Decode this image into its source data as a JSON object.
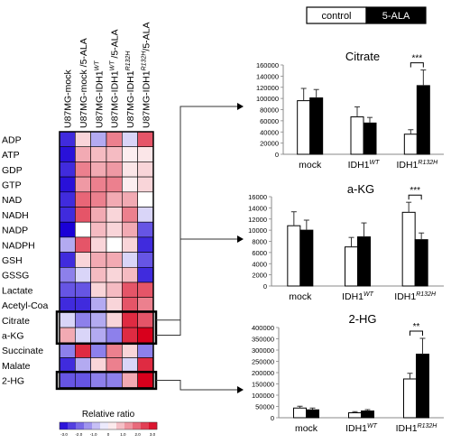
{
  "chart_data": [
    {
      "type": "heatmap",
      "columns": [
        "U87MG-mock",
        "U87MG-mock /5-ALA",
        "U87MG-IDH1 WT",
        "U87MG-IDH1 WT /5-ALA",
        "U87MG-IDH1 R132H",
        "U87MG-IDH1 R132H /5-ALA"
      ],
      "column_parts": [
        [
          "U87MG-mock",
          "",
          ""
        ],
        [
          "U87MG-mock /5-ALA",
          "",
          ""
        ],
        [
          "U87MG-IDH1",
          "WT",
          ""
        ],
        [
          "U87MG-IDH1",
          "WT",
          " /5-ALA"
        ],
        [
          "U87MG-IDH1",
          "R132H",
          ""
        ],
        [
          "U87MG-IDH1",
          "R132H",
          "/5-ALA"
        ]
      ],
      "rows": [
        "ADP",
        "ATP",
        "GDP",
        "GTP",
        "NAD",
        "NADH",
        "NADP",
        "NADPH",
        "GSH",
        "GSSG",
        "Lactate",
        "Acetyl-Coa",
        "Citrate",
        "a-KG",
        "Succinate",
        "Malate",
        "2-HG"
      ],
      "values": [
        [
          -2.5,
          0.5,
          -1.0,
          1.5,
          -0.5,
          2.0
        ],
        [
          -2.8,
          1.0,
          0.8,
          0.8,
          0.2,
          0.3
        ],
        [
          -2.5,
          1.5,
          1.0,
          1.2,
          0.3,
          0.5
        ],
        [
          -2.8,
          1.2,
          1.5,
          1.5,
          0.2,
          0.5
        ],
        [
          -2.5,
          1.8,
          1.5,
          1.0,
          1.0,
          0.0
        ],
        [
          -2.5,
          2.0,
          1.0,
          0.5,
          1.5,
          -0.5
        ],
        [
          -3.0,
          0.0,
          0.8,
          0.5,
          1.0,
          -2.0
        ],
        [
          -1.0,
          2.0,
          0.5,
          0.0,
          0.5,
          -2.5
        ],
        [
          -2.5,
          0.5,
          1.0,
          1.0,
          -0.5,
          -2.0
        ],
        [
          -1.5,
          -0.5,
          0.8,
          0.5,
          0.8,
          -2.5
        ],
        [
          -2.0,
          -2.0,
          0.5,
          0.8,
          2.0,
          2.0
        ],
        [
          -2.5,
          -2.5,
          -1.0,
          0.5,
          2.0,
          1.5
        ],
        [
          -0.5,
          -1.5,
          -1.0,
          0.5,
          2.5,
          2.0
        ],
        [
          1.0,
          -0.5,
          -1.0,
          -1.5,
          2.5,
          3.0
        ],
        [
          -1.5,
          2.5,
          -1.5,
          1.5,
          0.5,
          -1.5
        ],
        [
          -2.5,
          -1.0,
          0.5,
          1.5,
          -0.5,
          2.5
        ],
        [
          -2.0,
          -2.0,
          -1.5,
          -1.5,
          1.0,
          3.0
        ]
      ],
      "highlighted_rows": [
        "Citrate",
        "a-KG",
        "2-HG"
      ],
      "color_scale": {
        "title": "Relative ratio",
        "ticks": [
          "-3.0",
          "-2.0",
          "-1.0",
          "0",
          "1.0",
          "2.0",
          "3.0"
        ],
        "range": [
          -3,
          3
        ],
        "low_color": "#1a00d6",
        "mid_color": "#ffffff",
        "high_color": "#d8001c"
      }
    },
    {
      "type": "bar",
      "title": "Citrate",
      "categories": [
        "mock",
        "IDH1",
        "IDH1"
      ],
      "category_superscripts": [
        "",
        "WT",
        "R132H"
      ],
      "series": [
        {
          "name": "control",
          "values": [
            96000,
            67000,
            36000
          ],
          "errors": [
            22000,
            18000,
            8000
          ]
        },
        {
          "name": "5-ALA",
          "values": [
            101000,
            56000,
            123000
          ],
          "errors": [
            15000,
            10000,
            28000
          ]
        }
      ],
      "ylim": [
        0,
        160000
      ],
      "yticks": [
        "0",
        "20000",
        "40000",
        "60000",
        "80000",
        "100000",
        "120000",
        "140000",
        "160000"
      ],
      "significance": [
        {
          "category_index": 2,
          "label": "***"
        }
      ]
    },
    {
      "type": "bar",
      "title": "a-KG",
      "categories": [
        "mock",
        "IDH1",
        "IDH1"
      ],
      "category_superscripts": [
        "",
        "WT",
        "R132H"
      ],
      "series": [
        {
          "name": "control",
          "values": [
            10800,
            7000,
            13200
          ],
          "errors": [
            2500,
            1700,
            1800
          ]
        },
        {
          "name": "5-ALA",
          "values": [
            10000,
            8800,
            8300
          ],
          "errors": [
            1800,
            2500,
            1200
          ]
        }
      ],
      "ylim": [
        0,
        16000
      ],
      "yticks": [
        "0",
        "2000",
        "4000",
        "6000",
        "8000",
        "10000",
        "12000",
        "14000",
        "16000"
      ],
      "significance": [
        {
          "category_index": 2,
          "label": "***"
        }
      ]
    },
    {
      "type": "bar",
      "title": "2-HG",
      "categories": [
        "mock",
        "IDH1",
        "IDH1"
      ],
      "category_superscripts": [
        "",
        "WT",
        "R132H"
      ],
      "series": [
        {
          "name": "control",
          "values": [
            43000,
            22000,
            172000
          ],
          "errors": [
            8000,
            5000,
            25000
          ]
        },
        {
          "name": "5-ALA",
          "values": [
            35000,
            30000,
            282000
          ],
          "errors": [
            8000,
            6000,
            70000
          ]
        }
      ],
      "ylim": [
        0,
        400000
      ],
      "yticks": [
        "0",
        "50000",
        "100000",
        "150000",
        "200000",
        "250000",
        "300000",
        "350000",
        "400000"
      ],
      "significance": [
        {
          "category_index": 2,
          "label": "**"
        }
      ]
    }
  ],
  "legend": [
    "control",
    "5-ALA"
  ],
  "colors": {
    "control": "#ffffff",
    "5-ALA": "#000000",
    "highlight_frame": "#000000"
  }
}
